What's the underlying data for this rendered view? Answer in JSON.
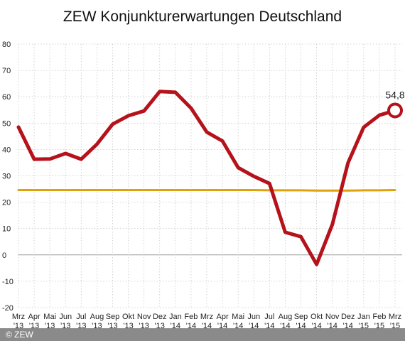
{
  "chart_data": {
    "type": "line",
    "title": "ZEW Konjunkturerwartungen Deutschland",
    "xlabel": "",
    "ylabel": "",
    "ylim": [
      -20,
      80
    ],
    "yticks": [
      80,
      70,
      60,
      50,
      40,
      30,
      20,
      10,
      0,
      -10,
      -20
    ],
    "ytick_labels": [
      "80",
      "70",
      "60",
      "50",
      "40",
      "30",
      "20",
      "10",
      "0",
      "-10",
      "-20"
    ],
    "grid": true,
    "categories": [
      {
        "month": "Mrz",
        "year": "'13"
      },
      {
        "month": "Apr",
        "year": "'13"
      },
      {
        "month": "Mai",
        "year": "'13"
      },
      {
        "month": "Jun",
        "year": "'13"
      },
      {
        "month": "Jul",
        "year": "'13"
      },
      {
        "month": "Aug",
        "year": "'13"
      },
      {
        "month": "Sep",
        "year": "'13"
      },
      {
        "month": "Okt",
        "year": "'13"
      },
      {
        "month": "Nov",
        "year": "'13"
      },
      {
        "month": "Dez",
        "year": "'13"
      },
      {
        "month": "Jan",
        "year": "'14"
      },
      {
        "month": "Feb",
        "year": "'14"
      },
      {
        "month": "Mrz",
        "year": "'14"
      },
      {
        "month": "Apr",
        "year": "'14"
      },
      {
        "month": "Mai",
        "year": "'14"
      },
      {
        "month": "Jun",
        "year": "'14"
      },
      {
        "month": "Jul",
        "year": "'14"
      },
      {
        "month": "Aug",
        "year": "'14"
      },
      {
        "month": "Sep",
        "year": "'14"
      },
      {
        "month": "Okt",
        "year": "'14"
      },
      {
        "month": "Nov",
        "year": "'14"
      },
      {
        "month": "Dez",
        "year": "'14"
      },
      {
        "month": "Jan",
        "year": "'15"
      },
      {
        "month": "Feb",
        "year": "'15"
      },
      {
        "month": "Mrz",
        "year": "'15"
      }
    ],
    "series": [
      {
        "color": "#b5121b",
        "values": [
          48.5,
          36.3,
          36.4,
          38.5,
          36.3,
          42.0,
          49.6,
          52.8,
          54.6,
          62.0,
          61.7,
          55.7,
          46.6,
          43.2,
          33.1,
          29.8,
          27.1,
          8.6,
          6.9,
          -3.6,
          11.5,
          34.9,
          48.4,
          53.0,
          54.8
        ]
      },
      {
        "color": "#e0a10a",
        "values": [
          24.6,
          24.6,
          24.6,
          24.6,
          24.6,
          24.6,
          24.6,
          24.6,
          24.6,
          24.6,
          24.6,
          24.6,
          24.6,
          24.6,
          24.6,
          24.6,
          24.5,
          24.5,
          24.5,
          24.4,
          24.4,
          24.4,
          24.5,
          24.5,
          24.6
        ]
      }
    ],
    "annotation": {
      "label": "54,8",
      "index": 24
    }
  },
  "copyright": "© ZEW"
}
